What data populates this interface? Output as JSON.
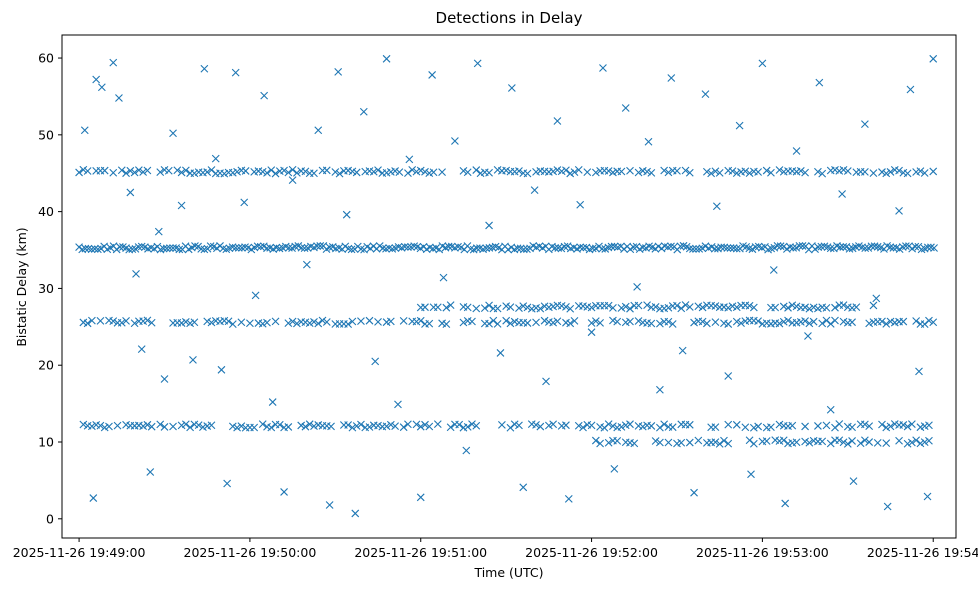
{
  "chart_data": {
    "type": "scatter",
    "title": "Detections in Delay",
    "xlabel": "Time (UTC)",
    "ylabel": "Bistatic Delay (km)",
    "x_unit": "time (UTC)",
    "xlim": [
      "2025-11-26 19:48:54",
      "2025-11-26 19:54:08"
    ],
    "ylim": [
      -2.5,
      63
    ],
    "x_ticks": [
      "2025-11-26 19:49:00",
      "2025-11-26 19:50:00",
      "2025-11-26 19:51:00",
      "2025-11-26 19:52:00",
      "2025-11-26 19:53:00",
      "2025-11-26 19:54:00"
    ],
    "y_ticks": [
      0,
      10,
      20,
      30,
      40,
      50,
      60
    ],
    "marker": "x",
    "color": "#1f77b4",
    "grid": false,
    "series": [
      {
        "summary_bands": [
          {
            "delay_km": 45.2,
            "from": "2025-11-26 19:49:00",
            "to": "2025-11-26 19:54:01"
          },
          {
            "delay_km": 35.3,
            "from": "2025-11-26 19:49:00",
            "to": "2025-11-26 19:54:01"
          },
          {
            "delay_km": 25.6,
            "from": "2025-11-26 19:49:00",
            "to": "2025-11-26 19:54:01"
          },
          {
            "delay_km": 12.1,
            "from": "2025-11-26 19:49:00",
            "to": "2025-11-26 19:54:01"
          },
          {
            "delay_km": 27.6,
            "from": "2025-11-26 19:51:00",
            "to": "2025-11-26 19:53:40"
          },
          {
            "delay_km": 10.0,
            "from": "2025-11-26 19:52:00",
            "to": "2025-11-26 19:54:01"
          }
        ],
        "points": [
          [
            "2025-11-26 19:49:02",
            50.6
          ],
          [
            "2025-11-26 19:49:05",
            2.7
          ],
          [
            "2025-11-26 19:49:06",
            57.2
          ],
          [
            "2025-11-26 19:49:08",
            56.2
          ],
          [
            "2025-11-26 19:49:12",
            59.4
          ],
          [
            "2025-11-26 19:49:14",
            54.8
          ],
          [
            "2025-11-26 19:49:18",
            42.5
          ],
          [
            "2025-11-26 19:49:20",
            31.9
          ],
          [
            "2025-11-26 19:49:22",
            22.1
          ],
          [
            "2025-11-26 19:49:25",
            6.1
          ],
          [
            "2025-11-26 19:49:28",
            37.4
          ],
          [
            "2025-11-26 19:49:30",
            18.2
          ],
          [
            "2025-11-26 19:49:33",
            50.2
          ],
          [
            "2025-11-26 19:49:36",
            40.8
          ],
          [
            "2025-11-26 19:49:40",
            20.7
          ],
          [
            "2025-11-26 19:49:44",
            58.6
          ],
          [
            "2025-11-26 19:49:48",
            46.9
          ],
          [
            "2025-11-26 19:49:50",
            19.4
          ],
          [
            "2025-11-26 19:49:52",
            4.6
          ],
          [
            "2025-11-26 19:49:55",
            58.1
          ],
          [
            "2025-11-26 19:49:58",
            41.2
          ],
          [
            "2025-11-26 19:50:02",
            29.1
          ],
          [
            "2025-11-26 19:50:05",
            55.1
          ],
          [
            "2025-11-26 19:50:08",
            15.2
          ],
          [
            "2025-11-26 19:50:12",
            3.5
          ],
          [
            "2025-11-26 19:50:15",
            44.1
          ],
          [
            "2025-11-26 19:50:20",
            33.1
          ],
          [
            "2025-11-26 19:50:24",
            50.6
          ],
          [
            "2025-11-26 19:50:28",
            1.8
          ],
          [
            "2025-11-26 19:50:31",
            58.2
          ],
          [
            "2025-11-26 19:50:34",
            39.6
          ],
          [
            "2025-11-26 19:50:37",
            0.7
          ],
          [
            "2025-11-26 19:50:40",
            53.0
          ],
          [
            "2025-11-26 19:50:44",
            20.5
          ],
          [
            "2025-11-26 19:50:48",
            59.9
          ],
          [
            "2025-11-26 19:50:52",
            14.9
          ],
          [
            "2025-11-26 19:50:56",
            46.8
          ],
          [
            "2025-11-26 19:51:00",
            2.8
          ],
          [
            "2025-11-26 19:51:04",
            57.8
          ],
          [
            "2025-11-26 19:51:08",
            31.4
          ],
          [
            "2025-11-26 19:51:12",
            49.2
          ],
          [
            "2025-11-26 19:51:16",
            8.9
          ],
          [
            "2025-11-26 19:51:20",
            59.3
          ],
          [
            "2025-11-26 19:51:24",
            38.2
          ],
          [
            "2025-11-26 19:51:28",
            21.6
          ],
          [
            "2025-11-26 19:51:32",
            56.1
          ],
          [
            "2025-11-26 19:51:36",
            4.1
          ],
          [
            "2025-11-26 19:51:40",
            42.8
          ],
          [
            "2025-11-26 19:51:44",
            17.9
          ],
          [
            "2025-11-26 19:51:48",
            51.8
          ],
          [
            "2025-11-26 19:51:52",
            2.6
          ],
          [
            "2025-11-26 19:51:56",
            40.9
          ],
          [
            "2025-11-26 19:52:00",
            24.3
          ],
          [
            "2025-11-26 19:52:04",
            58.7
          ],
          [
            "2025-11-26 19:52:08",
            6.5
          ],
          [
            "2025-11-26 19:52:12",
            53.5
          ],
          [
            "2025-11-26 19:52:16",
            30.2
          ],
          [
            "2025-11-26 19:52:20",
            49.1
          ],
          [
            "2025-11-26 19:52:24",
            16.8
          ],
          [
            "2025-11-26 19:52:28",
            57.4
          ],
          [
            "2025-11-26 19:52:32",
            21.9
          ],
          [
            "2025-11-26 19:52:36",
            3.4
          ],
          [
            "2025-11-26 19:52:40",
            55.3
          ],
          [
            "2025-11-26 19:52:44",
            40.7
          ],
          [
            "2025-11-26 19:52:48",
            18.6
          ],
          [
            "2025-11-26 19:52:52",
            51.2
          ],
          [
            "2025-11-26 19:52:56",
            5.8
          ],
          [
            "2025-11-26 19:53:00",
            59.3
          ],
          [
            "2025-11-26 19:53:04",
            32.4
          ],
          [
            "2025-11-26 19:53:08",
            2.0
          ],
          [
            "2025-11-26 19:53:12",
            47.9
          ],
          [
            "2025-11-26 19:53:16",
            23.8
          ],
          [
            "2025-11-26 19:53:20",
            56.8
          ],
          [
            "2025-11-26 19:53:24",
            14.2
          ],
          [
            "2025-11-26 19:53:28",
            42.3
          ],
          [
            "2025-11-26 19:53:32",
            4.9
          ],
          [
            "2025-11-26 19:53:36",
            51.4
          ],
          [
            "2025-11-26 19:53:40",
            28.7
          ],
          [
            "2025-11-26 19:53:44",
            1.6
          ],
          [
            "2025-11-26 19:53:48",
            40.1
          ],
          [
            "2025-11-26 19:53:52",
            55.9
          ],
          [
            "2025-11-26 19:53:55",
            19.2
          ],
          [
            "2025-11-26 19:53:58",
            2.9
          ],
          [
            "2025-11-26 19:54:00",
            59.9
          ]
        ]
      }
    ]
  }
}
